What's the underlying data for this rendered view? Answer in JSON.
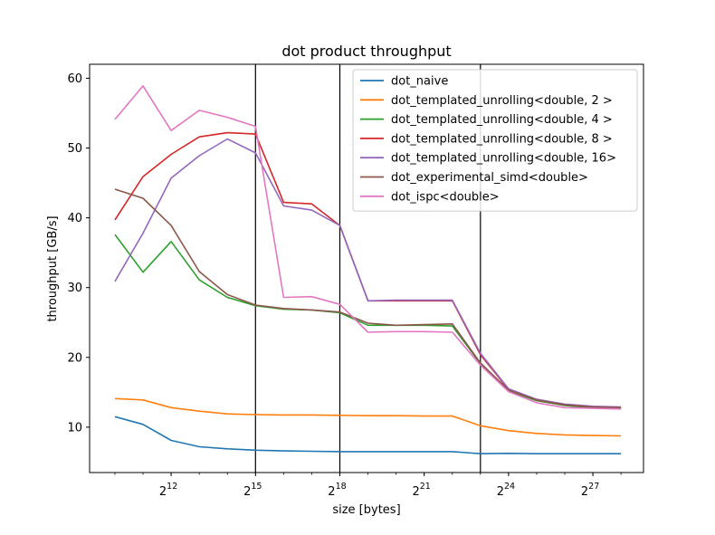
{
  "chart_data": {
    "type": "line",
    "title": "dot product throughput",
    "xlabel": "size [bytes]",
    "ylabel": "throughput [GB/s]",
    "x_scale": "log2",
    "x_exponents": [
      10,
      11,
      12,
      13,
      14,
      15,
      16,
      17,
      18,
      19,
      20,
      21,
      22,
      23,
      24,
      25,
      26,
      27,
      28
    ],
    "xlim_exponents": [
      9.1,
      28.8
    ],
    "ylim": [
      3.5,
      62
    ],
    "x_ticks": [
      {
        "base": "2",
        "exp": "12",
        "value": 12
      },
      {
        "base": "2",
        "exp": "15",
        "value": 15
      },
      {
        "base": "2",
        "exp": "18",
        "value": 18
      },
      {
        "base": "2",
        "exp": "21",
        "value": 21
      },
      {
        "base": "2",
        "exp": "24",
        "value": 24
      },
      {
        "base": "2",
        "exp": "27",
        "value": 27
      }
    ],
    "y_ticks": [
      {
        "label": "10",
        "value": 10
      },
      {
        "label": "20",
        "value": 20
      },
      {
        "label": "30",
        "value": 30
      },
      {
        "label": "40",
        "value": 40
      },
      {
        "label": "50",
        "value": 50
      },
      {
        "label": "60",
        "value": 60
      }
    ],
    "vertical_lines_exponents": [
      15,
      18,
      23
    ],
    "grid": false,
    "legend_position": "top-right",
    "series": [
      {
        "name": "dot_naive",
        "color": "#1f77b4",
        "values": [
          11.5,
          10.4,
          8.1,
          7.2,
          6.9,
          6.7,
          6.6,
          6.55,
          6.5,
          6.5,
          6.5,
          6.5,
          6.5,
          6.2,
          6.25,
          6.2,
          6.2,
          6.2,
          6.2
        ]
      },
      {
        "name": "dot_templated_unrolling<double, 2 >",
        "color": "#ff7f0e",
        "values": [
          14.1,
          13.9,
          12.8,
          12.3,
          11.9,
          11.8,
          11.75,
          11.75,
          11.7,
          11.65,
          11.65,
          11.6,
          11.6,
          10.2,
          9.5,
          9.1,
          8.9,
          8.8,
          8.75
        ]
      },
      {
        "name": "dot_templated_unrolling<double, 4 >",
        "color": "#2ca02c",
        "values": [
          37.6,
          32.2,
          36.6,
          31.1,
          28.6,
          27.4,
          26.9,
          26.8,
          26.4,
          24.6,
          24.6,
          24.6,
          24.5,
          19.1,
          15.2,
          13.8,
          13.1,
          12.8,
          12.6
        ]
      },
      {
        "name": "dot_templated_unrolling<double, 8 >",
        "color": "#d62728",
        "values": [
          39.7,
          45.9,
          49.1,
          51.6,
          52.2,
          52.0,
          42.2,
          42.0,
          38.9,
          28.1,
          28.1,
          28.1,
          28.1,
          20.4,
          15.4,
          13.9,
          13.2,
          12.9,
          12.8
        ]
      },
      {
        "name": "dot_templated_unrolling<double, 16>",
        "color": "#9467bd",
        "values": [
          30.9,
          37.8,
          45.7,
          48.9,
          51.3,
          49.3,
          41.7,
          41.1,
          38.9,
          28.1,
          28.2,
          28.2,
          28.2,
          20.6,
          15.5,
          14.0,
          13.3,
          13.0,
          12.9
        ]
      },
      {
        "name": "dot_experimental_simd<double>",
        "color": "#8c564b",
        "values": [
          44.1,
          42.8,
          38.9,
          32.3,
          29.0,
          27.5,
          27.0,
          26.8,
          26.5,
          24.9,
          24.6,
          24.7,
          24.8,
          19.2,
          15.3,
          13.9,
          13.2,
          12.9,
          12.8
        ]
      },
      {
        "name": "dot_ispc<double>",
        "color": "#e377c2",
        "values": [
          54.1,
          58.9,
          52.5,
          55.4,
          54.4,
          53.1,
          28.6,
          28.7,
          27.6,
          23.6,
          23.7,
          23.7,
          23.6,
          18.9,
          15.1,
          13.5,
          12.8,
          12.7,
          12.6
        ]
      }
    ]
  }
}
